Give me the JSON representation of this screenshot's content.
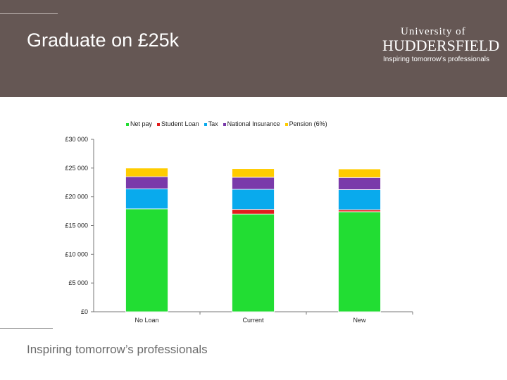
{
  "slide": {
    "title": "Graduate on £25k",
    "footer": "Inspiring tomorrow’s professionals"
  },
  "logo": {
    "top": "University of",
    "main": "HUDDERSFIELD",
    "sub": "Inspiring tomorrow’s professionals"
  },
  "colors": {
    "header": "#655754",
    "net_pay": "#22dd33",
    "student_loan": "#e21c1c",
    "tax": "#09aaed",
    "national_insurance": "#7a3aaa",
    "pension": "#ffcc00"
  },
  "chart_data": {
    "type": "bar",
    "stacked": true,
    "categories": [
      "No Loan",
      "Current",
      "New"
    ],
    "series": [
      {
        "name": "Net pay",
        "values": [
          17900,
          17000,
          17400
        ]
      },
      {
        "name": "Student Loan",
        "values": [
          0,
          800,
          350
        ]
      },
      {
        "name": "Tax",
        "values": [
          3500,
          3500,
          3500
        ]
      },
      {
        "name": "National Insurance",
        "values": [
          2100,
          2100,
          2100
        ]
      },
      {
        "name": "Pension (6%)",
        "values": [
          1500,
          1500,
          1500
        ]
      }
    ],
    "y_ticks": [
      "£0",
      "£5 000",
      "£10 000",
      "£15 000",
      "£20 000",
      "£25 000",
      "£30 000"
    ],
    "ylim": [
      0,
      30000
    ],
    "grid": false,
    "legend": "top"
  }
}
